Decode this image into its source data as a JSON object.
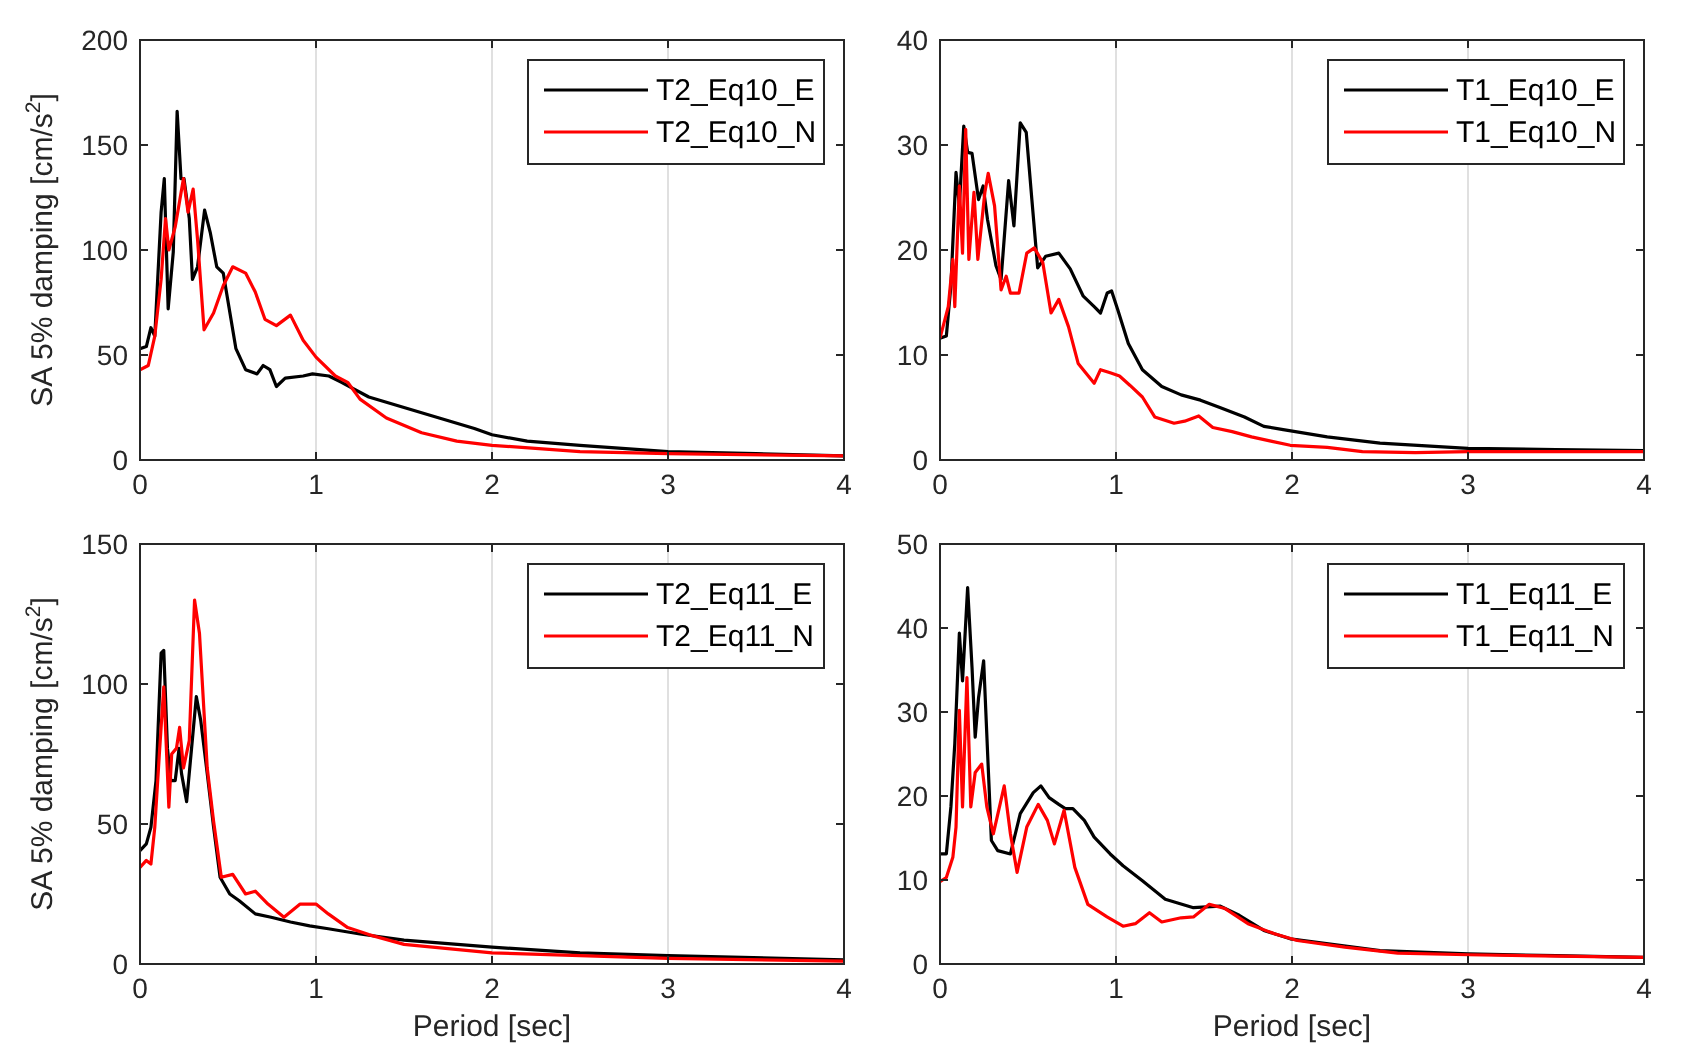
{
  "chart_data": [
    {
      "type": "line",
      "ylabel": "SA 5% damping [cm/s$^{2}$]",
      "xlim": [
        0,
        4
      ],
      "xticks": [
        0,
        1,
        2,
        3,
        4
      ],
      "ylim": [
        0,
        200
      ],
      "yticks": [
        0,
        50,
        100,
        150,
        200
      ],
      "grid": "x",
      "legend": "top right",
      "series": [
        {
          "name": "T2_Eq10_E",
          "color": "#000000",
          "x": [
            0,
            0.036,
            0.062,
            0.084,
            0.12,
            0.138,
            0.16,
            0.189,
            0.211,
            0.233,
            0.25,
            0.28,
            0.298,
            0.327,
            0.367,
            0.4,
            0.436,
            0.473,
            0.545,
            0.6,
            0.665,
            0.7,
            0.738,
            0.775,
            0.825,
            0.927,
            0.98,
            1.073,
            1.145,
            1.3,
            1.5,
            1.7,
            1.9,
            2,
            2.2,
            2.5,
            3,
            3.5,
            4
          ],
          "values": [
            53,
            54,
            63,
            59,
            118,
            134,
            72,
            99,
            166,
            134,
            134,
            115,
            86,
            92,
            119,
            108,
            92,
            89,
            53,
            43,
            41,
            45,
            43,
            35,
            39,
            40,
            41,
            40,
            37,
            30,
            25,
            20,
            15,
            12,
            9,
            7,
            4,
            3,
            2
          ]
        },
        {
          "name": "T2_Eq10_N",
          "color": "#ff0000",
          "x": [
            0,
            0.047,
            0.084,
            0.12,
            0.145,
            0.164,
            0.2,
            0.247,
            0.273,
            0.302,
            0.327,
            0.364,
            0.418,
            0.473,
            0.527,
            0.6,
            0.655,
            0.71,
            0.775,
            0.855,
            0.927,
            1,
            1.11,
            1.18,
            1.25,
            1.4,
            1.6,
            1.8,
            2,
            2.5,
            3,
            4
          ],
          "values": [
            43,
            45,
            59,
            86,
            115,
            100,
            111,
            134,
            118,
            129,
            105,
            62,
            70,
            83,
            92,
            89,
            80,
            67,
            64,
            69,
            57,
            49,
            40,
            37,
            29,
            20,
            13,
            9,
            7,
            4,
            3,
            2
          ]
        }
      ]
    },
    {
      "type": "line",
      "xlim": [
        0,
        4
      ],
      "xticks": [
        0,
        1,
        2,
        3,
        4
      ],
      "ylim": [
        0,
        40
      ],
      "yticks": [
        0,
        10,
        20,
        30,
        40
      ],
      "grid": "x",
      "legend": "top right",
      "series": [
        {
          "name": "T1_Eq10_E",
          "color": "#000000",
          "x": [
            0,
            0.036,
            0.062,
            0.091,
            0.11,
            0.135,
            0.157,
            0.182,
            0.219,
            0.245,
            0.27,
            0.318,
            0.347,
            0.39,
            0.42,
            0.456,
            0.49,
            0.522,
            0.555,
            0.6,
            0.675,
            0.74,
            0.814,
            0.876,
            0.912,
            0.95,
            0.975,
            1.01,
            1.07,
            1.15,
            1.26,
            1.37,
            1.48,
            1.59,
            1.73,
            1.84,
            1.95,
            2.2,
            2.5,
            3,
            3.5,
            4
          ],
          "values": [
            11.6,
            11.8,
            16.6,
            27.4,
            24.2,
            31.8,
            29.3,
            29.2,
            24.8,
            26.1,
            22.9,
            18.5,
            17.2,
            26.6,
            22.3,
            32.1,
            31.2,
            24.8,
            18.3,
            19.4,
            19.7,
            18.2,
            15.6,
            14.6,
            14,
            15.9,
            16.1,
            14.3,
            11.1,
            8.6,
            7,
            6.2,
            5.7,
            5,
            4.1,
            3.2,
            2.9,
            2.2,
            1.6,
            1.1,
            1,
            0.9
          ]
        },
        {
          "name": "T1_Eq10_N",
          "color": "#ff0000",
          "x": [
            0,
            0.047,
            0.073,
            0.084,
            0.11,
            0.128,
            0.146,
            0.164,
            0.193,
            0.215,
            0.255,
            0.274,
            0.31,
            0.347,
            0.376,
            0.4,
            0.449,
            0.493,
            0.536,
            0.584,
            0.631,
            0.675,
            0.73,
            0.785,
            0.876,
            0.912,
            0.967,
            1.02,
            1.08,
            1.15,
            1.22,
            1.33,
            1.39,
            1.47,
            1.55,
            1.66,
            1.77,
            1.88,
            1.99,
            2.2,
            2.4,
            2.7,
            3,
            4
          ],
          "values": [
            11.6,
            14.6,
            19.1,
            14.6,
            26.1,
            19.7,
            31.5,
            19.1,
            25.5,
            19.1,
            25.5,
            27.3,
            24.2,
            16.2,
            17.5,
            15.9,
            15.9,
            19.7,
            20.2,
            18.8,
            14,
            15.3,
            12.7,
            9.2,
            7.3,
            8.6,
            8.3,
            8,
            7.1,
            6,
            4.1,
            3.5,
            3.7,
            4.2,
            3.1,
            2.7,
            2.2,
            1.8,
            1.4,
            1.2,
            0.8,
            0.7,
            0.8,
            0.8
          ]
        }
      ]
    },
    {
      "type": "line",
      "xlabel": "Period [sec]",
      "ylabel": "SA 5% damping [cm/s$^{2}$]",
      "xlim": [
        0,
        4
      ],
      "xticks": [
        0,
        1,
        2,
        3,
        4
      ],
      "ylim": [
        0,
        150
      ],
      "yticks": [
        0,
        50,
        100,
        150
      ],
      "grid": "x",
      "legend": "top right",
      "series": [
        {
          "name": "T2_Eq11_E",
          "color": "#000000",
          "x": [
            0,
            0.036,
            0.062,
            0.091,
            0.12,
            0.135,
            0.156,
            0.175,
            0.2,
            0.222,
            0.236,
            0.265,
            0.29,
            0.32,
            0.345,
            0.382,
            0.418,
            0.455,
            0.51,
            0.564,
            0.655,
            0.745,
            0.855,
            0.964,
            1.07,
            1.25,
            1.5,
            2,
            2.5,
            3,
            4
          ],
          "values": [
            40.5,
            42.9,
            48.8,
            65.5,
            111,
            112,
            77,
            65.5,
            65.5,
            77,
            68,
            58,
            75,
            95.5,
            87,
            68,
            49,
            31,
            25,
            22.6,
            17.9,
            16.7,
            15,
            13.6,
            12.6,
            10.7,
            8.5,
            6,
            4,
            3,
            1.5
          ]
        },
        {
          "name": "T2_Eq11_N",
          "color": "#ff0000",
          "x": [
            0,
            0.036,
            0.062,
            0.084,
            0.11,
            0.135,
            0.164,
            0.18,
            0.207,
            0.225,
            0.247,
            0.28,
            0.31,
            0.338,
            0.382,
            0.418,
            0.462,
            0.527,
            0.6,
            0.655,
            0.727,
            0.818,
            0.91,
            1,
            1.07,
            1.18,
            1.3,
            1.5,
            2,
            2.5,
            3,
            4
          ],
          "values": [
            34.5,
            37,
            35.7,
            48.8,
            75,
            99,
            56,
            75,
            77,
            84.5,
            70,
            79.8,
            130,
            118,
            70,
            51,
            31,
            32,
            25,
            26,
            21.4,
            16.7,
            21.4,
            21.4,
            17.9,
            13,
            10.5,
            7,
            4,
            3,
            2,
            1
          ]
        }
      ]
    },
    {
      "type": "line",
      "xlabel": "Period [sec]",
      "xlim": [
        0,
        4
      ],
      "xticks": [
        0,
        1,
        2,
        3,
        4
      ],
      "ylim": [
        0,
        50
      ],
      "yticks": [
        0,
        10,
        20,
        30,
        40,
        50
      ],
      "grid": "x",
      "legend": "top right",
      "series": [
        {
          "name": "T1_Eq11_E",
          "color": "#000000",
          "x": [
            0,
            0.036,
            0.062,
            0.084,
            0.11,
            0.128,
            0.157,
            0.182,
            0.2,
            0.219,
            0.248,
            0.274,
            0.292,
            0.328,
            0.4,
            0.456,
            0.53,
            0.573,
            0.62,
            0.675,
            0.712,
            0.755,
            0.82,
            0.876,
            0.967,
            1.04,
            1.15,
            1.28,
            1.44,
            1.59,
            1.7,
            1.84,
            1.99,
            2.5,
            3,
            3.5,
            4
          ],
          "values": [
            13.1,
            13.1,
            18.7,
            26.2,
            39.4,
            33.7,
            44.8,
            35.3,
            27,
            31.7,
            36.1,
            23.4,
            14.7,
            13.5,
            13.1,
            17.9,
            20.4,
            21.2,
            19.8,
            19,
            18.5,
            18.5,
            17.1,
            15.1,
            13.1,
            11.7,
            9.9,
            7.7,
            6.7,
            6.9,
            5.8,
            4,
            3,
            1.6,
            1.2,
            1,
            0.8
          ]
        },
        {
          "name": "T1_Eq11_N",
          "color": "#ff0000",
          "x": [
            0,
            0.036,
            0.073,
            0.091,
            0.11,
            0.128,
            0.153,
            0.175,
            0.2,
            0.237,
            0.266,
            0.303,
            0.365,
            0.4,
            0.438,
            0.493,
            0.558,
            0.61,
            0.65,
            0.705,
            0.766,
            0.84,
            0.949,
            1.04,
            1.11,
            1.19,
            1.26,
            1.37,
            1.44,
            1.53,
            1.62,
            1.75,
            1.9,
            2.03,
            2.3,
            2.6,
            3,
            4
          ],
          "values": [
            9.8,
            10.3,
            12.7,
            16.3,
            30.2,
            18.7,
            34.1,
            18.7,
            22.8,
            23.8,
            18.7,
            15.5,
            21.2,
            15.5,
            10.9,
            16.3,
            19,
            17.1,
            14.3,
            18.3,
            11.5,
            7.1,
            5.6,
            4.5,
            4.8,
            6.1,
            5,
            5.5,
            5.6,
            7.1,
            6.6,
            4.8,
            3.6,
            2.8,
            2,
            1.3,
            1.1,
            0.8
          ]
        }
      ]
    }
  ]
}
